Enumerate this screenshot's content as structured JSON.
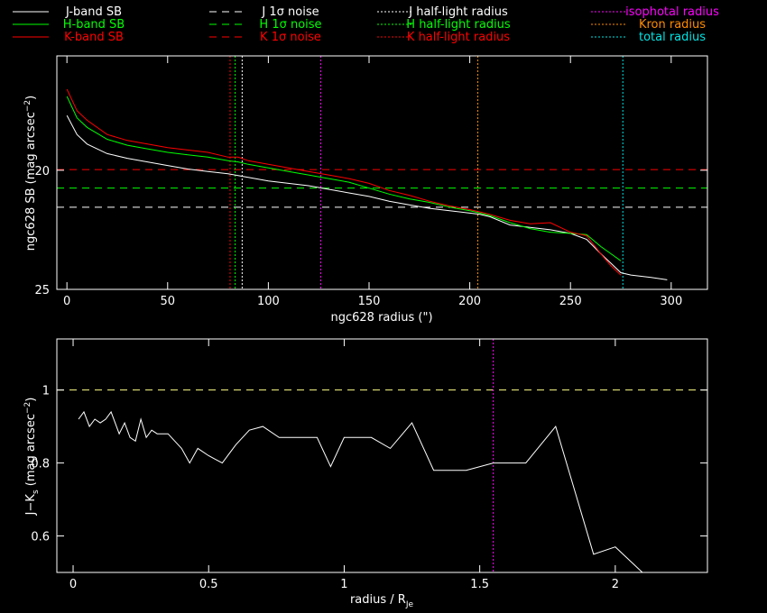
{
  "colors": {
    "J": "#ffffff",
    "H": "#00ff00",
    "K": "#ff0000",
    "iso": "#ff00ff",
    "kron": "#ff8c00",
    "total": "#00e5e5"
  },
  "legend": [
    {
      "label": "J-band SB",
      "color": "#ffffff",
      "style": "solid"
    },
    {
      "label": "H-band SB",
      "color": "#00ff00",
      "style": "solid"
    },
    {
      "label": "K-band SB",
      "color": "#ff0000",
      "style": "solid"
    },
    {
      "label": "J 1σ noise",
      "color": "#ffffff",
      "style": "dashed"
    },
    {
      "label": "H 1σ noise",
      "color": "#00ff00",
      "style": "dashed"
    },
    {
      "label": "K 1σ noise",
      "color": "#ff0000",
      "style": "dashed"
    },
    {
      "label": "J half-light radius",
      "color": "#ffffff",
      "style": "dotted"
    },
    {
      "label": "H half-light radius",
      "color": "#00ff00",
      "style": "dotted"
    },
    {
      "label": "K half-light radius",
      "color": "#ff0000",
      "style": "dotted"
    },
    {
      "label": "isophotal radius",
      "color": "#ff00ff",
      "style": "dotted"
    },
    {
      "label": "Kron radius",
      "color": "#ff8c00",
      "style": "dotted"
    },
    {
      "label": "total radius",
      "color": "#00e5e5",
      "style": "dotted"
    }
  ],
  "chart_data": [
    {
      "type": "line",
      "xlabel": "ngc628 radius (\")",
      "ylabel_main": "ngc628 SB (mag arcsec",
      "ylabel_sup": "−2",
      "ylabel_end": ")",
      "xlim": [
        -5,
        318
      ],
      "ylim": [
        25,
        15.2
      ],
      "xticks": [
        0,
        50,
        100,
        150,
        200,
        250,
        300
      ],
      "yticks": [
        20,
        25
      ],
      "series": [
        {
          "name": "J-band SB",
          "color": "#ffffff",
          "x": [
            0,
            5,
            10,
            20,
            30,
            40,
            50,
            60,
            70,
            80,
            85,
            90,
            100,
            110,
            120,
            130,
            140,
            150,
            160,
            170,
            180,
            190,
            200,
            205,
            210,
            220,
            230,
            240,
            250,
            258,
            265,
            270,
            275,
            280,
            290,
            298
          ],
          "y": [
            17.7,
            18.5,
            18.9,
            19.3,
            19.5,
            19.65,
            19.8,
            19.95,
            20.05,
            20.15,
            20.22,
            20.3,
            20.45,
            20.55,
            20.65,
            20.8,
            20.95,
            21.1,
            21.3,
            21.45,
            21.6,
            21.7,
            21.8,
            21.85,
            21.95,
            22.3,
            22.4,
            22.5,
            22.65,
            22.9,
            23.5,
            23.9,
            24.3,
            24.4,
            24.5,
            24.6
          ]
        },
        {
          "name": "H-band SB",
          "color": "#00ff00",
          "x": [
            0,
            5,
            10,
            20,
            30,
            40,
            50,
            60,
            70,
            80,
            85,
            90,
            100,
            110,
            120,
            130,
            140,
            150,
            160,
            170,
            180,
            190,
            200,
            205,
            210,
            220,
            230,
            240,
            250,
            258,
            265,
            270,
            275
          ],
          "y": [
            16.9,
            17.8,
            18.2,
            18.7,
            18.95,
            19.1,
            19.25,
            19.35,
            19.45,
            19.6,
            19.65,
            19.75,
            19.9,
            20.05,
            20.2,
            20.35,
            20.5,
            20.75,
            21.0,
            21.2,
            21.35,
            21.55,
            21.7,
            21.8,
            21.9,
            22.2,
            22.45,
            22.6,
            22.65,
            22.7,
            23.2,
            23.5,
            23.8
          ]
        },
        {
          "name": "K-band SB",
          "color": "#ff0000",
          "x": [
            0,
            5,
            10,
            20,
            30,
            40,
            50,
            60,
            70,
            80,
            85,
            90,
            100,
            110,
            120,
            130,
            140,
            150,
            160,
            170,
            180,
            190,
            200,
            205,
            210,
            220,
            230,
            240,
            250,
            258,
            265,
            270,
            275
          ],
          "y": [
            16.6,
            17.5,
            17.9,
            18.5,
            18.75,
            18.9,
            19.05,
            19.15,
            19.25,
            19.45,
            19.45,
            19.6,
            19.75,
            19.9,
            20.05,
            20.2,
            20.35,
            20.55,
            20.85,
            21.05,
            21.3,
            21.5,
            21.65,
            21.75,
            21.85,
            22.1,
            22.25,
            22.2,
            22.6,
            22.75,
            23.5,
            24.0,
            24.4
          ]
        }
      ],
      "hlines": [
        {
          "name": "J 1σ noise",
          "y": 21.55,
          "color": "#ffffff"
        },
        {
          "name": "H 1σ noise",
          "y": 20.75,
          "color": "#00ff00"
        },
        {
          "name": "K 1σ noise",
          "y": 19.97,
          "color": "#ff0000"
        }
      ],
      "vlines": [
        {
          "name": "K half-light radius",
          "x": 81,
          "color": "#ff0000"
        },
        {
          "name": "H half-light radius",
          "x": 83.5,
          "color": "#00ff00"
        },
        {
          "name": "J half-light radius",
          "x": 87,
          "color": "#ffffff"
        },
        {
          "name": "isophotal radius",
          "x": 126,
          "color": "#ff00ff"
        },
        {
          "name": "Kron radius",
          "x": 204,
          "color": "#ff8c00"
        },
        {
          "name": "total radius",
          "x": 276,
          "color": "#00e5e5"
        }
      ]
    },
    {
      "type": "line",
      "xlabel_main": "radius / R",
      "xlabel_sub": "Je",
      "ylabel_main": "J−K",
      "ylabel_sub": "s",
      "ylabel_rest": " (mag arcsec",
      "ylabel_sup": "−2",
      "ylabel_end": ")",
      "xlim": [
        -0.06,
        2.34
      ],
      "ylim": [
        0.5,
        1.14
      ],
      "xticks": [
        0,
        0.5,
        1,
        1.5,
        2
      ],
      "xticklabels": [
        "0",
        "0.5",
        "1",
        "1.5",
        "2"
      ],
      "yticks": [
        0.6,
        0.8,
        1
      ],
      "yticklabels": [
        "0.6",
        "0.8",
        "1"
      ],
      "series": [
        {
          "name": "J−Ks",
          "color": "#ffffff",
          "x": [
            0.02,
            0.04,
            0.06,
            0.08,
            0.1,
            0.12,
            0.14,
            0.17,
            0.19,
            0.21,
            0.23,
            0.25,
            0.27,
            0.29,
            0.31,
            0.35,
            0.4,
            0.43,
            0.46,
            0.5,
            0.55,
            0.6,
            0.65,
            0.7,
            0.76,
            0.83,
            0.9,
            0.95,
            1.0,
            1.05,
            1.1,
            1.17,
            1.25,
            1.33,
            1.45,
            1.55,
            1.67,
            1.78,
            1.92,
            2.0,
            2.1
          ],
          "y": [
            0.92,
            0.94,
            0.9,
            0.92,
            0.91,
            0.92,
            0.94,
            0.88,
            0.91,
            0.87,
            0.86,
            0.92,
            0.87,
            0.89,
            0.88,
            0.88,
            0.84,
            0.8,
            0.84,
            0.82,
            0.8,
            0.85,
            0.89,
            0.9,
            0.87,
            0.87,
            0.87,
            0.79,
            0.87,
            0.87,
            0.87,
            0.84,
            0.91,
            0.78,
            0.78,
            0.8,
            0.8,
            0.9,
            0.55,
            0.57,
            0.5
          ]
        }
      ],
      "hlines": [
        {
          "y": 1.0,
          "color": "#ffff88"
        }
      ],
      "vlines": [
        {
          "x": 1.55,
          "color": "#ff00ff"
        }
      ]
    }
  ]
}
